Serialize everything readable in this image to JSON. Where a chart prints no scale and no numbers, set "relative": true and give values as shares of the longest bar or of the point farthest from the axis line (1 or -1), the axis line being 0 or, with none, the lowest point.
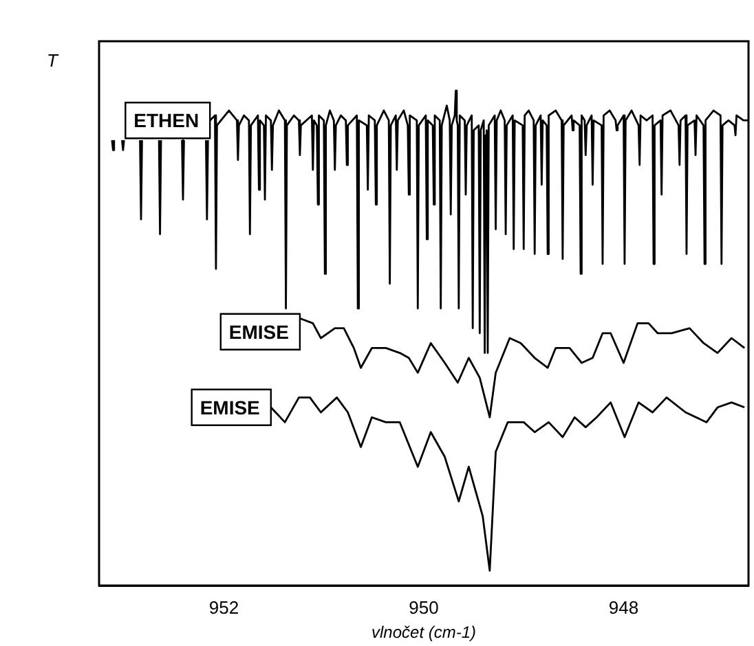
{
  "chart_data": {
    "type": "line",
    "relative": true,
    "ylabel": "T",
    "xlabel": "vlnočet (cm-1)",
    "xlim": [
      953.25,
      946.75
    ],
    "xticks": [
      952,
      950,
      948
    ],
    "grid": false,
    "legend": false,
    "series": [
      {
        "name": "ETHEN",
        "color": "#000000",
        "x": [
          953.12,
          953.11,
          953.1,
          953.09,
          953.02,
          953.01,
          953.0,
          952.99,
          952.84,
          952.83,
          952.82,
          952.81,
          952.65,
          952.64,
          952.63,
          952.62,
          952.42,
          952.41,
          952.4,
          952.39,
          952.18,
          952.17,
          952.16,
          952.15,
          952.14,
          952.09,
          952.08,
          952.07,
          951.95,
          951.87,
          951.86,
          951.85,
          951.8,
          951.75,
          951.74,
          951.73,
          951.66,
          951.65,
          951.64,
          951.6,
          951.59,
          951.58,
          951.53,
          951.52,
          951.51,
          951.45,
          951.39,
          951.38,
          951.37,
          951.3,
          951.25,
          951.24,
          951.23,
          951.12,
          951.11,
          951.1,
          951.07,
          951.06,
          951.05,
          951.0,
          950.99,
          950.98,
          950.94,
          950.9,
          950.89,
          950.88,
          950.83,
          950.78,
          950.77,
          950.76,
          950.67,
          950.66,
          950.65,
          950.57,
          950.56,
          950.55,
          950.49,
          950.48,
          950.47,
          950.4,
          950.35,
          950.34,
          950.33,
          950.28,
          950.27,
          950.26,
          950.2,
          950.16,
          950.15,
          950.14,
          950.07,
          950.06,
          950.05,
          949.98,
          949.97,
          949.96,
          949.91,
          949.9,
          949.89,
          949.84,
          949.83,
          949.82,
          949.77,
          949.74,
          949.73,
          949.72,
          949.69,
          949.68,
          949.67,
          949.66,
          949.65,
          949.64,
          949.59,
          949.58,
          949.57,
          949.52,
          949.51,
          949.5,
          949.45,
          949.44,
          949.43,
          949.4,
          949.39,
          949.38,
          949.37,
          949.36,
          949.35,
          949.29,
          949.28,
          949.27,
          949.23,
          949.19,
          949.18,
          949.17,
          949.11,
          949.1,
          949.09,
          949.01,
          949.0,
          948.99,
          948.95,
          948.9,
          948.89,
          948.88,
          948.83,
          948.82,
          948.81,
          948.77,
          948.76,
          948.75,
          948.68,
          948.62,
          948.61,
          948.6,
          948.52,
          948.51,
          948.5,
          948.44,
          948.43,
          948.42,
          948.39,
          948.38,
          948.37,
          948.32,
          948.31,
          948.3,
          948.22,
          948.21,
          948.2,
          948.14,
          948.08,
          948.07,
          948.06,
          948.0,
          947.99,
          947.98,
          947.92,
          947.85,
          947.84,
          947.83,
          947.77,
          947.71,
          947.7,
          947.69,
          947.63,
          947.62,
          947.61,
          947.53,
          947.45,
          947.44,
          947.43,
          947.38,
          947.37,
          947.36,
          947.29,
          947.28,
          947.27,
          947.2,
          947.19,
          947.18,
          947.1,
          947.03,
          947.02,
          947.01,
          946.95,
          946.89,
          946.88,
          946.87,
          946.8,
          946.75
        ],
        "values": [
          0.9,
          0.88,
          0.9,
          null,
          0.9,
          0.88,
          0.9,
          null,
          0.9,
          0.74,
          0.9,
          null,
          0.9,
          0.71,
          0.9,
          null,
          0.9,
          0.78,
          0.9,
          null,
          0.9,
          0.74,
          0.9,
          null,
          0.94,
          0.95,
          0.64,
          0.93,
          0.96,
          0.94,
          0.86,
          0.93,
          0.95,
          0.94,
          0.71,
          0.93,
          0.95,
          0.8,
          0.94,
          0.93,
          0.78,
          0.95,
          0.94,
          0.84,
          0.93,
          0.96,
          0.94,
          0.56,
          0.93,
          0.95,
          0.94,
          0.87,
          0.93,
          0.95,
          0.84,
          0.94,
          0.93,
          0.77,
          0.95,
          0.94,
          0.63,
          0.93,
          0.96,
          0.94,
          0.84,
          0.93,
          0.95,
          0.94,
          0.85,
          0.93,
          0.95,
          0.56,
          0.94,
          0.93,
          0.8,
          0.95,
          0.94,
          0.77,
          0.93,
          0.96,
          0.94,
          0.61,
          0.93,
          0.95,
          0.84,
          0.94,
          0.96,
          0.93,
          0.79,
          0.95,
          0.94,
          0.56,
          0.93,
          0.95,
          0.7,
          0.94,
          0.93,
          0.77,
          0.95,
          0.94,
          0.56,
          0.93,
          0.97,
          0.94,
          0.75,
          0.93,
          0.95,
          1.0,
          0.94,
          0.93,
          0.56,
          0.95,
          0.94,
          0.79,
          0.93,
          0.95,
          0.52,
          0.92,
          0.93,
          0.51,
          0.92,
          0.94,
          0.47,
          0.91,
          0.92,
          0.47,
          0.93,
          0.95,
          0.72,
          0.94,
          0.96,
          0.94,
          0.71,
          0.93,
          0.95,
          0.68,
          0.94,
          0.93,
          0.68,
          0.95,
          0.96,
          0.94,
          0.67,
          0.93,
          0.95,
          0.81,
          0.94,
          0.93,
          0.67,
          0.95,
          0.96,
          0.94,
          0.66,
          0.93,
          0.95,
          0.92,
          0.94,
          0.93,
          0.63,
          0.95,
          0.94,
          0.87,
          0.93,
          0.95,
          0.81,
          0.94,
          0.93,
          0.65,
          0.95,
          0.96,
          0.94,
          0.92,
          0.93,
          0.95,
          0.65,
          0.94,
          0.96,
          0.93,
          0.85,
          0.95,
          0.94,
          0.95,
          0.65,
          0.93,
          0.94,
          0.79,
          0.95,
          0.96,
          0.93,
          0.85,
          0.94,
          0.95,
          0.67,
          0.93,
          0.94,
          0.87,
          0.95,
          0.93,
          0.65,
          0.94,
          0.96,
          0.95,
          0.65,
          0.93,
          0.94,
          0.93,
          0.91,
          0.95,
          0.94,
          0.94
        ]
      },
      {
        "name": "EMISE",
        "color": "#000000",
        "x": [
          951.24,
          951.11,
          951.03,
          950.89,
          950.8,
          950.7,
          950.63,
          950.52,
          950.38,
          950.24,
          950.15,
          950.06,
          949.93,
          949.79,
          949.66,
          949.55,
          949.44,
          949.34,
          949.28,
          949.14,
          949.03,
          948.89,
          948.76,
          948.68,
          948.54,
          948.42,
          948.31,
          948.21,
          948.13,
          948.0,
          947.86,
          947.75,
          947.66,
          947.52,
          947.34,
          947.2,
          947.06,
          946.92,
          946.79
        ],
        "values": [
          0.54,
          0.53,
          0.5,
          0.52,
          0.52,
          0.48,
          0.44,
          0.48,
          0.48,
          0.47,
          0.46,
          0.43,
          0.49,
          0.45,
          0.41,
          0.46,
          0.42,
          0.34,
          0.43,
          0.5,
          0.49,
          0.46,
          0.44,
          0.48,
          0.48,
          0.45,
          0.46,
          0.51,
          0.51,
          0.45,
          0.53,
          0.53,
          0.51,
          0.51,
          0.52,
          0.49,
          0.47,
          0.5,
          0.48
        ]
      },
      {
        "name": "EMISE",
        "color": "#000000",
        "x": [
          951.53,
          951.39,
          951.25,
          951.14,
          951.03,
          950.87,
          950.76,
          950.63,
          950.52,
          950.38,
          950.24,
          950.06,
          949.93,
          949.79,
          949.65,
          949.55,
          949.48,
          949.41,
          949.34,
          949.28,
          949.16,
          949.0,
          948.89,
          948.75,
          948.61,
          948.49,
          948.38,
          948.27,
          948.13,
          947.99,
          947.85,
          947.71,
          947.57,
          947.38,
          947.17,
          947.06,
          946.92,
          946.79
        ],
        "values": [
          0.36,
          0.33,
          0.38,
          0.38,
          0.35,
          0.38,
          0.35,
          0.28,
          0.34,
          0.33,
          0.33,
          0.24,
          0.31,
          0.26,
          0.17,
          0.24,
          0.19,
          0.14,
          0.03,
          0.27,
          0.33,
          0.33,
          0.31,
          0.33,
          0.3,
          0.34,
          0.32,
          0.34,
          0.37,
          0.3,
          0.37,
          0.35,
          0.38,
          0.35,
          0.33,
          0.36,
          0.37,
          0.36
        ]
      }
    ]
  }
}
